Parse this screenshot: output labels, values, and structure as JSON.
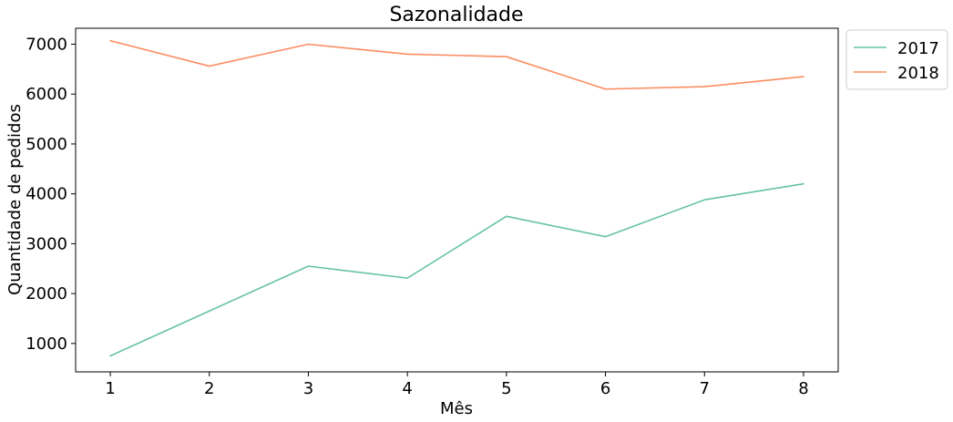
{
  "chart_data": {
    "type": "line",
    "title": "Sazonalidade",
    "xlabel": "Mês",
    "ylabel": "Quantidade de pedidos",
    "x": [
      1,
      2,
      3,
      4,
      5,
      6,
      7,
      8
    ],
    "xlim": [
      0.65,
      8.35
    ],
    "ylim": [
      430,
      7320
    ],
    "yticks": [
      1000,
      2000,
      3000,
      4000,
      5000,
      6000,
      7000
    ],
    "xticks": [
      1,
      2,
      3,
      4,
      5,
      6,
      7,
      8
    ],
    "grid": false,
    "legend_position": "outside-top-right",
    "series": [
      {
        "name": "2017",
        "color": "#66c2a5",
        "values": [
          750,
          1650,
          2550,
          2310,
          3550,
          3140,
          3880,
          4200
        ]
      },
      {
        "name": "2018",
        "color": "#fc8d62",
        "values": [
          7070,
          6560,
          7000,
          6800,
          6750,
          6100,
          6150,
          6350
        ]
      }
    ]
  }
}
